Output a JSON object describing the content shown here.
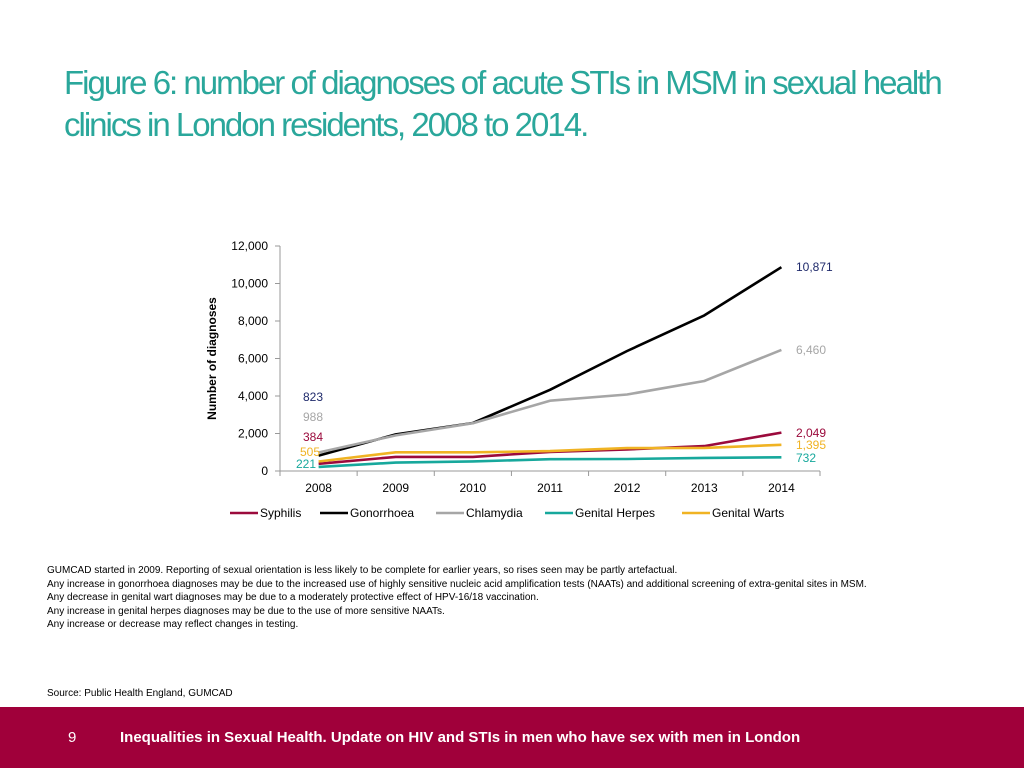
{
  "title": "Figure 6: number of diagnoses of acute STIs in MSM in sexual health clinics in London residents, 2008 to 2014.",
  "chart_data": {
    "type": "line",
    "x": [
      "2008",
      "2009",
      "2010",
      "2011",
      "2012",
      "2013",
      "2014"
    ],
    "ylabel": "Number of diagnoses",
    "xlabel": "",
    "ylim": [
      0,
      12000
    ],
    "yticks": [
      "0",
      "2,000",
      "4,000",
      "6,000",
      "8,000",
      "10,000",
      "12,000"
    ],
    "legend_position": "bottom",
    "grid": false,
    "series": [
      {
        "name": "Syphilis",
        "color": "#9b0a3c",
        "values": [
          384,
          750,
          750,
          1020,
          1150,
          1330,
          2049
        ],
        "start_label": "384",
        "end_label": "2,049"
      },
      {
        "name": "Gonorrhoea",
        "color": "#000000",
        "values": [
          823,
          1950,
          2560,
          4330,
          6400,
          8300,
          10871
        ],
        "start_label": "823",
        "end_label": "10,871"
      },
      {
        "name": "Chlamydia",
        "color": "#a6a6a6",
        "values": [
          988,
          1900,
          2550,
          3750,
          4080,
          4800,
          6460
        ],
        "start_label": "988",
        "end_label": "6,460"
      },
      {
        "name": "Genital Herpes",
        "color": "#17a89c",
        "values": [
          221,
          450,
          510,
          630,
          640,
          700,
          732
        ],
        "start_label": "221",
        "end_label": "732"
      },
      {
        "name": "Genital Warts",
        "color": "#f0b323",
        "values": [
          505,
          1000,
          1000,
          1060,
          1220,
          1230,
          1395
        ],
        "start_label": "505",
        "end_label": "1,395"
      }
    ],
    "start_label_colors": {
      "Gonorrhoea": "#1f2a6b"
    },
    "end_label_colors": {
      "Gonorrhoea": "#1f2a6b"
    }
  },
  "notes": [
    "GUMCAD started in 2009. Reporting of sexual orientation is less likely to be complete for earlier years, so rises seen may be partly artefactual.",
    "Any increase in gonorrhoea diagnoses may be due to the increased use of highly sensitive nucleic acid amplification tests (NAATs) and additional screening of extra-genital sites in MSM.",
    "Any decrease in genital wart diagnoses may be due to a moderately protective effect of HPV-16/18 vaccination.",
    "Any increase in genital herpes diagnoses may be due to the use of more sensitive NAATs.",
    "Any increase or decrease may reflect changes in testing."
  ],
  "source": "Source: Public Health England, GUMCAD",
  "footer": {
    "page_number": "9",
    "text": "Inequalities in Sexual Health. Update on HIV and STIs in men who have sex with men in London"
  }
}
